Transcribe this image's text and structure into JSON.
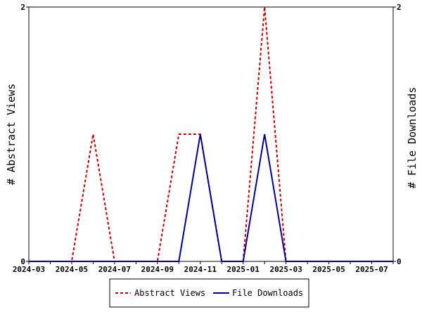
{
  "chart_data": {
    "type": "line",
    "x": [
      "2024-03",
      "2024-04",
      "2024-05",
      "2024-06",
      "2024-07",
      "2024-08",
      "2024-09",
      "2024-10",
      "2024-11",
      "2024-12",
      "2025-01",
      "2025-02",
      "2025-03",
      "2025-04",
      "2025-05",
      "2025-06",
      "2025-07",
      "2025-08"
    ],
    "x_tick_labels": [
      "2024-03",
      "2024-05",
      "2024-07",
      "2024-09",
      "2024-11",
      "2025-01",
      "2025-03",
      "2025-05",
      "2025-07"
    ],
    "series": [
      {
        "name": "Abstract Views",
        "axis": "left",
        "color": "#cc0000",
        "dash": "dashed",
        "values": [
          0,
          0,
          0,
          1,
          0,
          0,
          0,
          1,
          1,
          0,
          0,
          2,
          0,
          0,
          0,
          0,
          0,
          0
        ]
      },
      {
        "name": "File Downloads",
        "axis": "right",
        "color": "#000099",
        "dash": "solid",
        "values": [
          0,
          0,
          0,
          0,
          0,
          0,
          0,
          0,
          1,
          0,
          0,
          1,
          0,
          0,
          0,
          0,
          0,
          0
        ]
      }
    ],
    "ylabel_left": "# Abstract Views",
    "ylabel_right": "# File Downloads",
    "ylim": [
      0,
      2
    ],
    "y_ticks": [
      0,
      2
    ],
    "grid": false,
    "legend_position": "bottom-center"
  }
}
